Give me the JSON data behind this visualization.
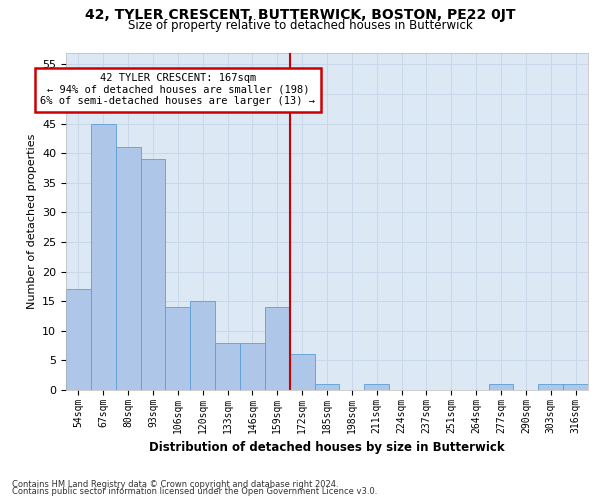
{
  "title1": "42, TYLER CRESCENT, BUTTERWICK, BOSTON, PE22 0JT",
  "title2": "Size of property relative to detached houses in Butterwick",
  "xlabel": "Distribution of detached houses by size in Butterwick",
  "ylabel": "Number of detached properties",
  "bar_labels": [
    "54sqm",
    "67sqm",
    "80sqm",
    "93sqm",
    "106sqm",
    "120sqm",
    "133sqm",
    "146sqm",
    "159sqm",
    "172sqm",
    "185sqm",
    "198sqm",
    "211sqm",
    "224sqm",
    "237sqm",
    "251sqm",
    "264sqm",
    "277sqm",
    "290sqm",
    "303sqm",
    "316sqm"
  ],
  "bar_values": [
    17,
    45,
    41,
    39,
    14,
    15,
    8,
    8,
    14,
    6,
    1,
    0,
    1,
    0,
    0,
    0,
    0,
    1,
    0,
    1,
    1
  ],
  "bar_color": "#aec6e8",
  "bar_edge_color": "#5a9fd4",
  "grid_color": "#c8d8e8",
  "background_color": "#dde8f5",
  "marker_line_color": "#cc0000",
  "annotation_text": "42 TYLER CRESCENT: 167sqm\n← 94% of detached houses are smaller (198)\n6% of semi-detached houses are larger (13) →",
  "annotation_box_color": "#cc0000",
  "ylim": [
    0,
    57
  ],
  "yticks": [
    0,
    5,
    10,
    15,
    20,
    25,
    30,
    35,
    40,
    45,
    50,
    55
  ],
  "footer1": "Contains HM Land Registry data © Crown copyright and database right 2024.",
  "footer2": "Contains public sector information licensed under the Open Government Licence v3.0."
}
